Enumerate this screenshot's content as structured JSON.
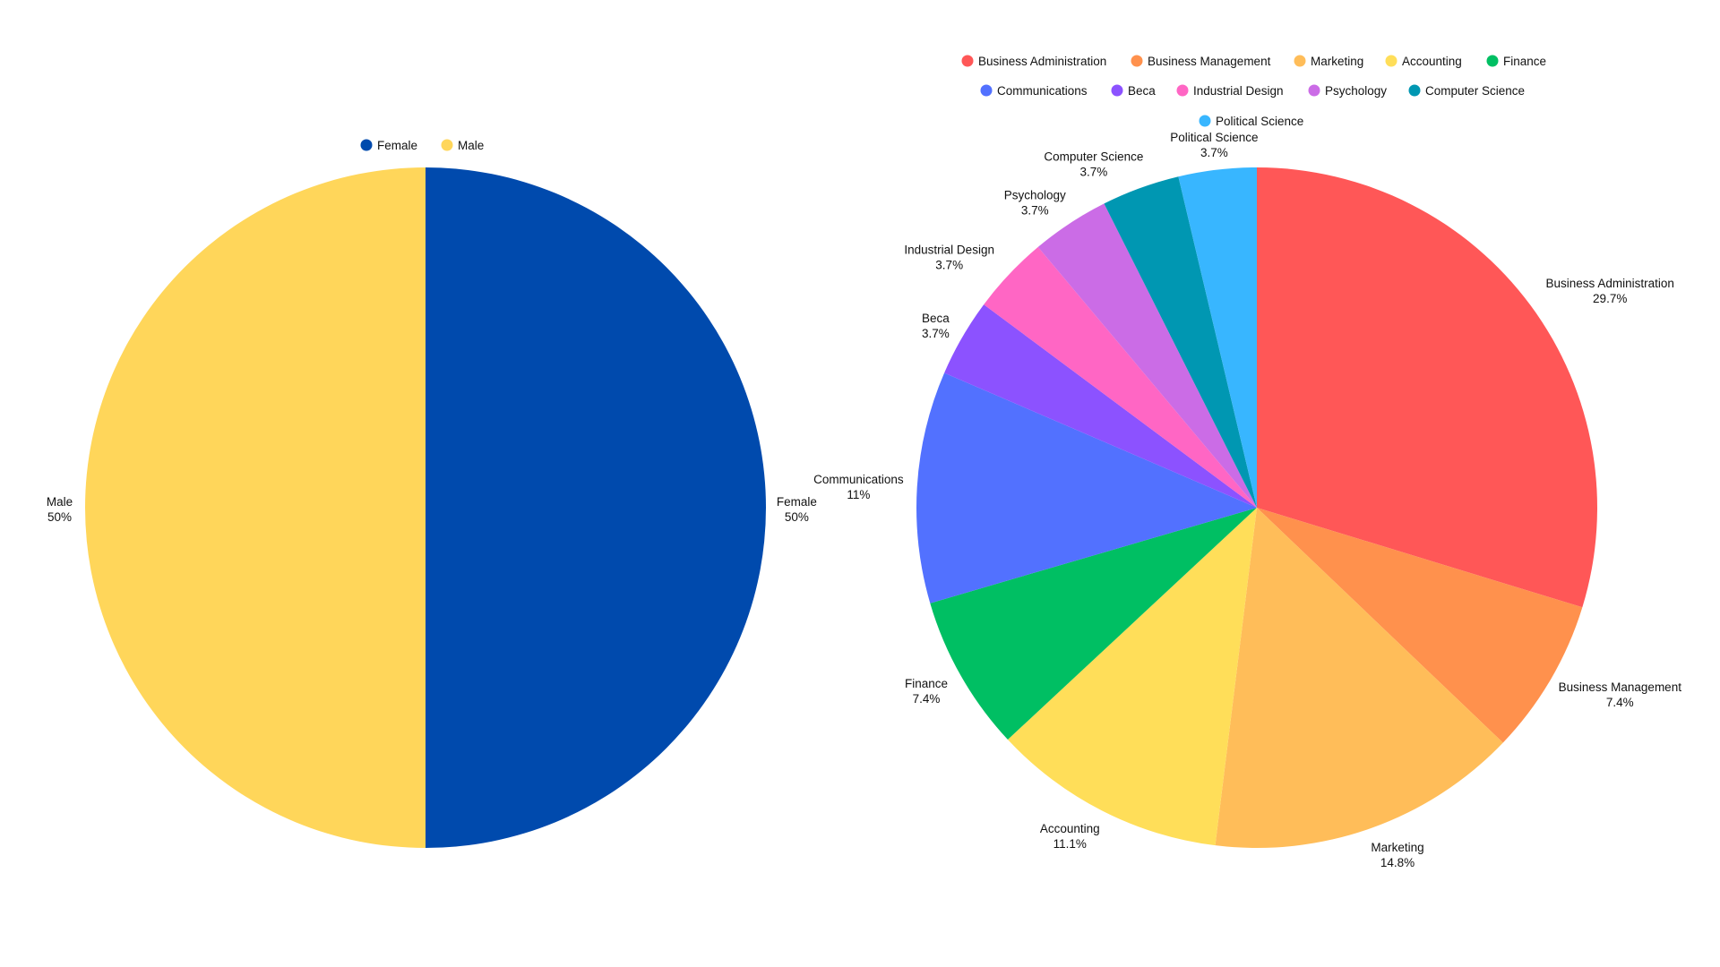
{
  "chart_data": [
    {
      "type": "pie",
      "title": "",
      "legend_position": "top",
      "slices": [
        {
          "label": "Female",
          "value": 50,
          "display": "50%",
          "color": "#004AAD"
        },
        {
          "label": "Male",
          "value": 50,
          "display": "50%",
          "color": "#FFD65A"
        }
      ]
    },
    {
      "type": "pie",
      "title": "",
      "legend_position": "top",
      "slices": [
        {
          "label": "Business Administration",
          "value": 29.7,
          "display": "29.7%",
          "color": "#FF5757"
        },
        {
          "label": "Business Management",
          "value": 7.4,
          "display": "7.4%",
          "color": "#FF914D"
        },
        {
          "label": "Marketing",
          "value": 14.8,
          "display": "14.8%",
          "color": "#FFBD59"
        },
        {
          "label": "Accounting",
          "value": 11.1,
          "display": "11.1%",
          "color": "#FFDE59"
        },
        {
          "label": "Finance",
          "value": 7.4,
          "display": "7.4%",
          "color": "#00BF63"
        },
        {
          "label": "Communications",
          "value": 11,
          "display": "11%",
          "color": "#5271FF"
        },
        {
          "label": "Beca",
          "value": 3.7,
          "display": "3.7%",
          "color": "#8C52FF"
        },
        {
          "label": "Industrial Design",
          "value": 3.7,
          "display": "3.7%",
          "color": "#FF66C4"
        },
        {
          "label": "Psychology",
          "value": 3.7,
          "display": "3.7%",
          "color": "#CB6CE6"
        },
        {
          "label": "Computer Science",
          "value": 3.7,
          "display": "3.7%",
          "color": "#0097B2"
        },
        {
          "label": "Political Science",
          "value": 3.7,
          "display": "3.7%",
          "color": "#38B6FF"
        }
      ]
    }
  ]
}
